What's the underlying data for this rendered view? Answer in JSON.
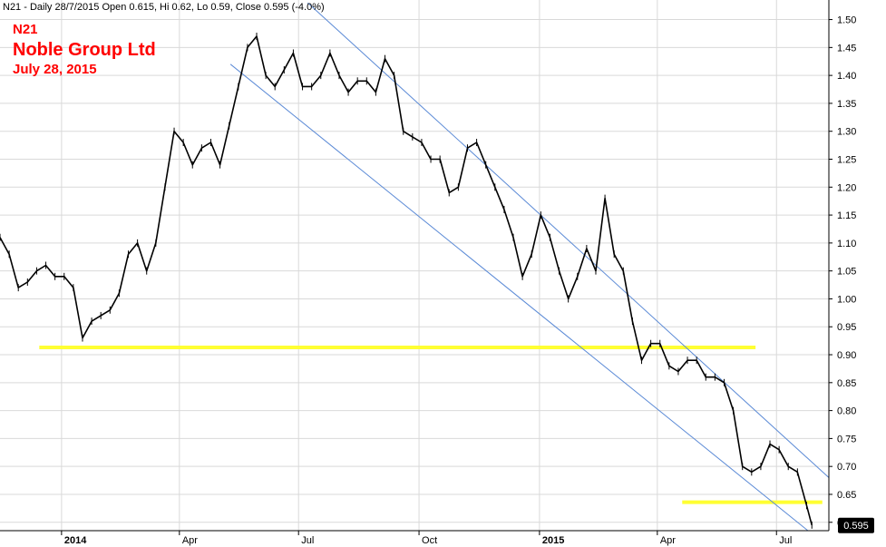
{
  "header": {
    "info_line": "N21 - Daily 28/7/2015 Open 0.615, Hi 0.62, Lo 0.59, Close 0.595 (-4.0%)"
  },
  "annotations": {
    "ticker": "N21",
    "company": "Noble Group Ltd",
    "date": "July 28, 2015"
  },
  "colors": {
    "price": "#000000",
    "channel": "#5b8ad6",
    "support": "#ffff33",
    "grid": "#d9d9d9",
    "last_label_bg": "#000000"
  },
  "chart_data": {
    "type": "line",
    "x_unit": "date",
    "ylim": [
      0.585,
      1.535
    ],
    "y_ticks": [
      0.6,
      0.65,
      0.7,
      0.75,
      0.8,
      0.85,
      0.9,
      0.95,
      1.0,
      1.05,
      1.1,
      1.15,
      1.2,
      1.25,
      1.3,
      1.35,
      1.4,
      1.45,
      1.5
    ],
    "y_tick_labels": [
      "0.60",
      "0.65",
      "0.70",
      "0.75",
      "0.80",
      "0.85",
      "0.90",
      "0.95",
      "1.00",
      "1.05",
      "1.10",
      "1.15",
      "1.20",
      "1.25",
      "1.30",
      "1.35",
      "1.40",
      "1.45",
      "1.50"
    ],
    "x_range": [
      "2013-11-15",
      "2015-08-10"
    ],
    "x_ticks": [
      {
        "date": "2014-01-01",
        "label": "2014",
        "bold": true
      },
      {
        "date": "2014-04-01",
        "label": "Apr",
        "bold": false
      },
      {
        "date": "2014-07-01",
        "label": "Jul",
        "bold": false
      },
      {
        "date": "2014-10-01",
        "label": "Oct",
        "bold": false
      },
      {
        "date": "2015-01-01",
        "label": "2015",
        "bold": true
      },
      {
        "date": "2015-04-01",
        "label": "Apr",
        "bold": false
      },
      {
        "date": "2015-07-01",
        "label": "Jul",
        "bold": false
      }
    ],
    "grid": true,
    "last_value_label": "0.595",
    "last_value": 0.595,
    "series": [
      {
        "x": [
          "2013-11-15",
          "2013-11-22",
          "2013-11-29",
          "2013-12-06",
          "2013-12-13",
          "2013-12-20",
          "2013-12-27",
          "2014-01-03",
          "2014-01-10",
          "2014-01-17",
          "2014-01-24",
          "2014-01-31",
          "2014-02-07",
          "2014-02-14",
          "2014-02-21",
          "2014-02-28",
          "2014-03-07",
          "2014-03-14",
          "2014-03-21",
          "2014-03-28",
          "2014-04-04",
          "2014-04-11",
          "2014-04-18",
          "2014-04-25",
          "2014-05-02",
          "2014-05-09",
          "2014-05-16",
          "2014-05-23",
          "2014-05-30",
          "2014-06-06",
          "2014-06-13",
          "2014-06-20",
          "2014-06-27",
          "2014-07-04",
          "2014-07-11",
          "2014-07-18",
          "2014-07-25",
          "2014-08-01",
          "2014-08-08",
          "2014-08-15",
          "2014-08-22",
          "2014-08-29",
          "2014-09-05",
          "2014-09-12",
          "2014-09-19",
          "2014-09-26",
          "2014-10-03",
          "2014-10-10",
          "2014-10-17",
          "2014-10-24",
          "2014-10-31",
          "2014-11-07",
          "2014-11-14",
          "2014-11-21",
          "2014-11-28",
          "2014-12-05",
          "2014-12-12",
          "2014-12-19",
          "2014-12-26",
          "2015-01-02",
          "2015-01-09",
          "2015-01-16",
          "2015-01-23",
          "2015-01-30",
          "2015-02-06",
          "2015-02-13",
          "2015-02-20",
          "2015-02-27",
          "2015-03-06",
          "2015-03-13",
          "2015-03-20",
          "2015-03-27",
          "2015-04-03",
          "2015-04-10",
          "2015-04-17",
          "2015-04-24",
          "2015-05-01",
          "2015-05-08",
          "2015-05-15",
          "2015-05-22",
          "2015-05-29",
          "2015-06-05",
          "2015-06-12",
          "2015-06-19",
          "2015-06-26",
          "2015-07-03",
          "2015-07-10",
          "2015-07-17",
          "2015-07-24",
          "2015-07-28"
        ],
        "y": [
          1.11,
          1.08,
          1.02,
          1.03,
          1.05,
          1.06,
          1.04,
          1.04,
          1.02,
          0.93,
          0.96,
          0.97,
          0.98,
          1.01,
          1.08,
          1.1,
          1.05,
          1.1,
          1.2,
          1.3,
          1.28,
          1.24,
          1.27,
          1.28,
          1.24,
          1.31,
          1.38,
          1.45,
          1.47,
          1.4,
          1.38,
          1.41,
          1.44,
          1.38,
          1.38,
          1.4,
          1.44,
          1.4,
          1.37,
          1.39,
          1.39,
          1.37,
          1.43,
          1.4,
          1.3,
          1.29,
          1.28,
          1.25,
          1.25,
          1.19,
          1.2,
          1.27,
          1.28,
          1.24,
          1.2,
          1.16,
          1.11,
          1.04,
          1.08,
          1.15,
          1.11,
          1.05,
          1.0,
          1.04,
          1.09,
          1.05,
          1.18,
          1.08,
          1.05,
          0.96,
          0.89,
          0.92,
          0.92,
          0.88,
          0.87,
          0.89,
          0.89,
          0.86,
          0.86,
          0.85,
          0.8,
          0.7,
          0.69,
          0.7,
          0.74,
          0.73,
          0.7,
          0.69,
          0.63,
          0.595
        ]
      }
    ],
    "channel_lines": [
      {
        "x": [
          "2014-05-10",
          "2015-07-25"
        ],
        "y": [
          1.42,
          0.585
        ]
      },
      {
        "x": [
          "2014-07-08",
          "2015-08-10"
        ],
        "y": [
          1.53,
          0.68
        ]
      }
    ],
    "support_lines": [
      {
        "x": [
          "2013-12-15",
          "2015-06-15"
        ],
        "y": [
          0.913,
          0.913
        ]
      },
      {
        "x": [
          "2015-04-20",
          "2015-08-05"
        ],
        "y": [
          0.636,
          0.636
        ]
      }
    ]
  }
}
